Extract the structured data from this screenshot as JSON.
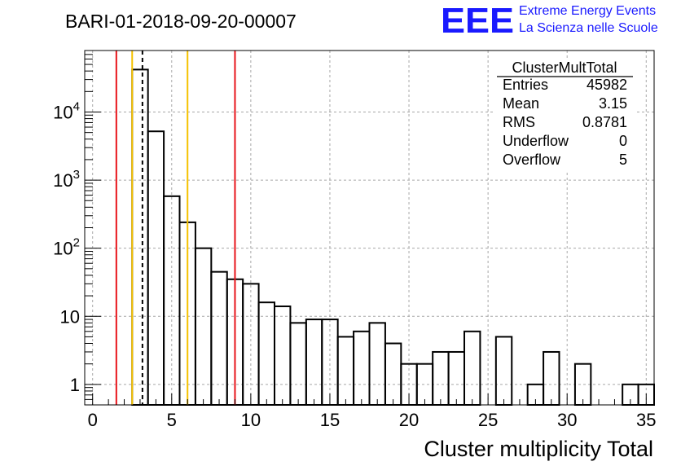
{
  "title": "BARI-01-2018-09-20-00007",
  "logo": {
    "mark": "EEE",
    "line1": "Extreme Energy Events",
    "line2": "La Scienza nelle Scuole",
    "color": "#1a1aff"
  },
  "stats": {
    "name": "ClusterMultTotal",
    "rows": [
      {
        "label": "Entries",
        "value": "45982"
      },
      {
        "label": "Mean",
        "value": "3.15"
      },
      {
        "label": "RMS",
        "value": "0.8781"
      },
      {
        "label": "Underflow",
        "value": "0"
      },
      {
        "label": "Overflow",
        "value": "5"
      }
    ]
  },
  "chart_data": {
    "type": "bar",
    "subtype": "histogram",
    "title": "BARI-01-2018-09-20-00007",
    "xlabel": "Cluster multiplicity Total",
    "ylabel": "",
    "xlim": [
      -0.5,
      35.5
    ],
    "ylim": [
      0.5,
      80000
    ],
    "y_scale": "log",
    "grid": true,
    "x_ticks": [
      "0",
      "5",
      "10",
      "15",
      "20",
      "25",
      "30",
      "35"
    ],
    "y_ticks": [
      {
        "value": 1,
        "label": "1"
      },
      {
        "value": 10,
        "label": "10"
      },
      {
        "value": 100,
        "label": "10",
        "exp": "2"
      },
      {
        "value": 1000,
        "label": "10",
        "exp": "3"
      },
      {
        "value": 10000,
        "label": "10",
        "exp": "4"
      }
    ],
    "bin_width": 1,
    "bins": [
      {
        "x": 0,
        "y": 0
      },
      {
        "x": 1,
        "y": 0
      },
      {
        "x": 2,
        "y": 0
      },
      {
        "x": 3,
        "y": 42000
      },
      {
        "x": 4,
        "y": 5200
      },
      {
        "x": 5,
        "y": 580
      },
      {
        "x": 6,
        "y": 240
      },
      {
        "x": 7,
        "y": 100
      },
      {
        "x": 8,
        "y": 45
      },
      {
        "x": 9,
        "y": 35
      },
      {
        "x": 10,
        "y": 30
      },
      {
        "x": 11,
        "y": 16
      },
      {
        "x": 12,
        "y": 14
      },
      {
        "x": 13,
        "y": 8
      },
      {
        "x": 14,
        "y": 9
      },
      {
        "x": 15,
        "y": 9
      },
      {
        "x": 16,
        "y": 5
      },
      {
        "x": 17,
        "y": 6
      },
      {
        "x": 18,
        "y": 8
      },
      {
        "x": 19,
        "y": 4
      },
      {
        "x": 20,
        "y": 2
      },
      {
        "x": 21,
        "y": 2
      },
      {
        "x": 22,
        "y": 3
      },
      {
        "x": 23,
        "y": 3
      },
      {
        "x": 24,
        "y": 6
      },
      {
        "x": 25,
        "y": 0
      },
      {
        "x": 26,
        "y": 5
      },
      {
        "x": 27,
        "y": 0
      },
      {
        "x": 28,
        "y": 1
      },
      {
        "x": 29,
        "y": 3
      },
      {
        "x": 30,
        "y": 0
      },
      {
        "x": 31,
        "y": 2
      },
      {
        "x": 32,
        "y": 0
      },
      {
        "x": 33,
        "y": 0
      },
      {
        "x": 34,
        "y": 1
      },
      {
        "x": 35,
        "y": 1
      }
    ],
    "vertical_lines": [
      {
        "x": 1.5,
        "color": "#e8141b",
        "style": "solid"
      },
      {
        "x": 2.5,
        "color": "#f5c200",
        "style": "solid"
      },
      {
        "x": 3.15,
        "color": "#000000",
        "style": "dashed"
      },
      {
        "x": 6,
        "color": "#f5c200",
        "style": "solid"
      },
      {
        "x": 9,
        "color": "#e8141b",
        "style": "solid"
      }
    ]
  }
}
